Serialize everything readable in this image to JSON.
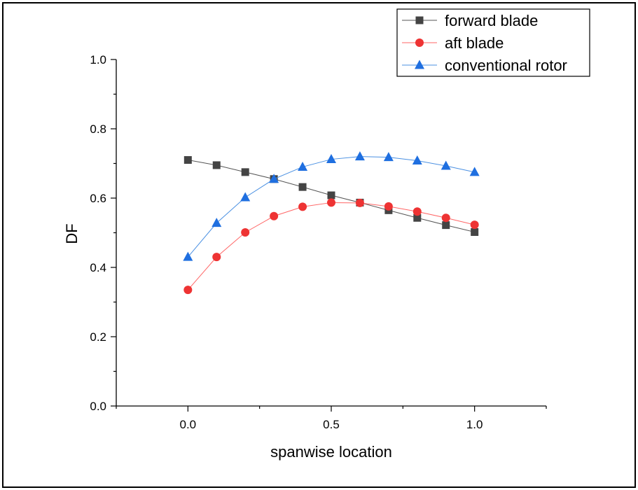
{
  "chart_data": {
    "type": "line",
    "xlabel": "spanwise location",
    "ylabel": "DF",
    "xlim": [
      -0.25,
      1.25
    ],
    "ylim": [
      0.0,
      1.0
    ],
    "xticks": [
      "0.0",
      "0.5",
      "1.0"
    ],
    "yticks": [
      "0.0",
      "0.2",
      "0.4",
      "0.6",
      "0.8",
      "1.0"
    ],
    "grid": false,
    "legend_position": "top-right",
    "x": [
      0.0,
      0.1,
      0.2,
      0.3,
      0.4,
      0.5,
      0.6,
      0.7,
      0.8,
      0.9,
      1.0
    ],
    "series": [
      {
        "name": "forward blade",
        "marker": "square",
        "color": "#444444",
        "line_color": "#555555",
        "values": [
          0.71,
          0.695,
          0.675,
          0.655,
          0.632,
          0.608,
          0.587,
          0.565,
          0.543,
          0.522,
          0.502
        ]
      },
      {
        "name": "aft blade",
        "marker": "circle",
        "color": "#ee3333",
        "line_color": "#ff6666",
        "values": [
          0.335,
          0.43,
          0.501,
          0.548,
          0.575,
          0.587,
          0.586,
          0.576,
          0.561,
          0.543,
          0.523
        ]
      },
      {
        "name": "conventional rotor",
        "marker": "triangle",
        "color": "#1f6fe0",
        "line_color": "#4a90e2",
        "values": [
          0.43,
          0.528,
          0.602,
          0.655,
          0.69,
          0.712,
          0.72,
          0.718,
          0.708,
          0.693,
          0.675
        ]
      }
    ]
  }
}
